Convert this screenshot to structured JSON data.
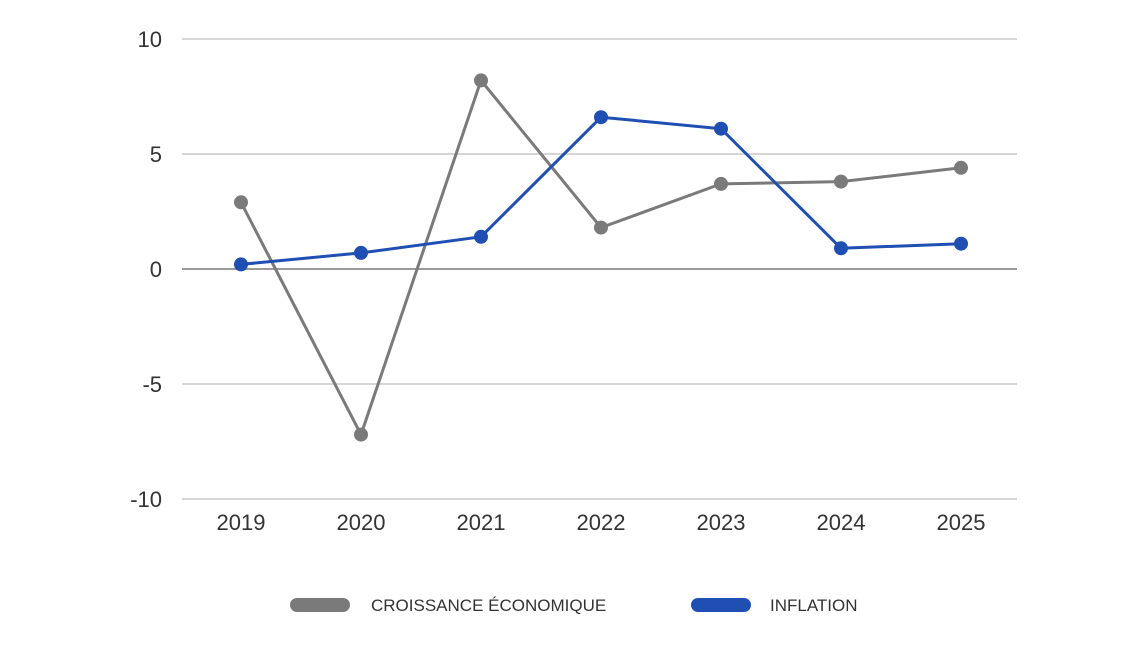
{
  "chart_data": {
    "type": "line",
    "categories": [
      "2019",
      "2020",
      "2021",
      "2022",
      "2023",
      "2024",
      "2025"
    ],
    "series": [
      {
        "name": "CROISSANCE ÉCONOMIQUE",
        "color": "#7a7a7a",
        "values": [
          2.9,
          -7.2,
          8.2,
          1.8,
          3.7,
          3.8,
          4.4
        ]
      },
      {
        "name": "INFLATION",
        "color": "#1f4fb3",
        "values": [
          0.2,
          0.7,
          1.4,
          6.6,
          6.1,
          0.9,
          1.1
        ]
      }
    ],
    "ylim": [
      -10,
      10
    ],
    "yticks": [
      "10",
      "5",
      "0",
      "-5",
      "-10"
    ],
    "grid": true,
    "legend_position": "bottom"
  }
}
